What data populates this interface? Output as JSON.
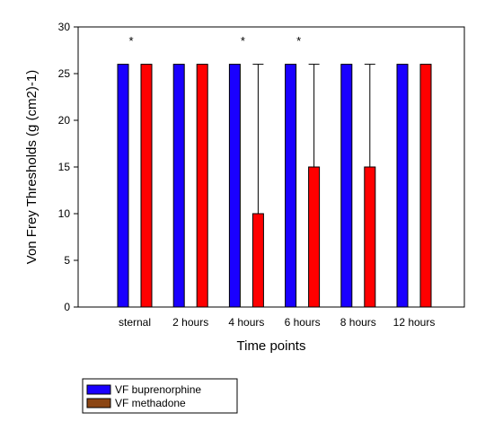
{
  "chart_data": {
    "type": "bar",
    "title": "",
    "xlabel": "Time points",
    "ylabel": "Von Frey Thresholds (g (cm2)-1)",
    "ylim": [
      0,
      30
    ],
    "yticks": [
      0,
      5,
      10,
      15,
      20,
      25,
      30
    ],
    "grid": false,
    "legend_position": "bottom-left",
    "categories": [
      "sternal",
      "2 hours",
      "4 hours",
      "6 hours",
      "8 hours",
      "12 hours"
    ],
    "series": [
      {
        "name": "VF buprenorphine",
        "color": "#1a00ff",
        "values": [
          26,
          26,
          26,
          26,
          26,
          26
        ],
        "error_upper": [
          26,
          26,
          26,
          26,
          26,
          26
        ]
      },
      {
        "name": "VF methadone",
        "color": "#ff0000",
        "legend_color": "#8b4513",
        "values": [
          26,
          26,
          10,
          15,
          15,
          26
        ],
        "error_upper": [
          26,
          26,
          26,
          26,
          26,
          26
        ]
      }
    ],
    "significance_marker": "*",
    "significant_categories": [
      "sternal",
      "4 hours",
      "6 hours"
    ]
  }
}
